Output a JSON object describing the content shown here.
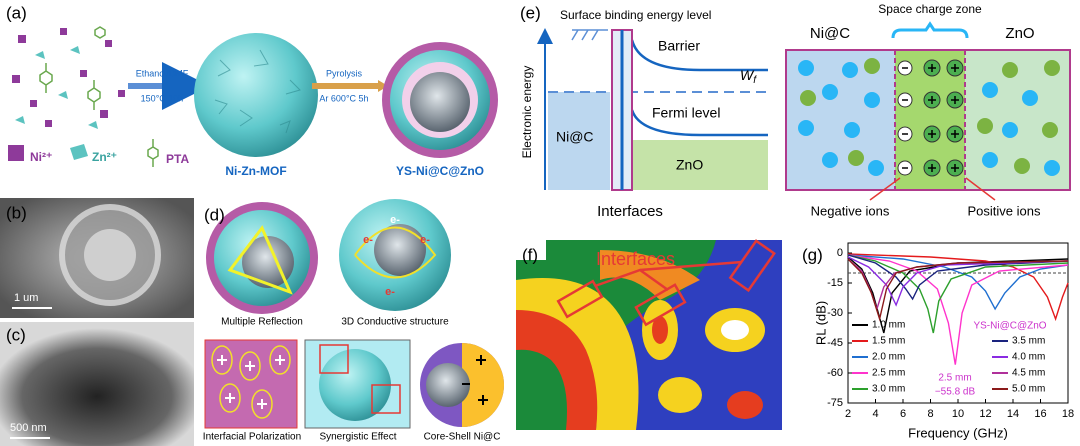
{
  "panel_a": {
    "label": "(a)",
    "step1_top": "Ethanol/DMF",
    "step1_bottom": "150°C 10h",
    "product1": "Ni-Zn-MOF",
    "step2_top": "Pyrolysis",
    "step2_bottom": "Ar 600°C 5h",
    "product2": "YS-Ni@C@ZnO",
    "legend": [
      "Ni²⁺",
      "Zn²⁺",
      "PTA"
    ]
  },
  "panel_b": {
    "label": "(b)",
    "scale_bar": "1 um"
  },
  "panel_c": {
    "label": "(c)",
    "scale_bar": "500 nm"
  },
  "panel_d": {
    "label": "(d)",
    "captions": [
      "Multiple Reflection",
      "3D Conductive structure",
      "Interfacial Polarization",
      "Synergistic Effect",
      "Core-Shell Ni@C"
    ],
    "electrons": [
      "e-",
      "e-",
      "e-",
      "e-"
    ]
  },
  "panel_e": {
    "label": "(e)",
    "y_axis": "Electronic energy",
    "surface_level": "Surface binding energy level",
    "barrier": "Barrier",
    "work_function": {
      "symbol": "W",
      "subscript": "f"
    },
    "fermi_level": "Fermi level",
    "left_material": "Ni@C",
    "right_material": "ZnO",
    "interfaces": "Interfaces",
    "zone_title": "Space charge zone",
    "zone_left": "Ni@C",
    "zone_right": "ZnO",
    "negative_ions": "Negative ions",
    "positive_ions": "Positive ions"
  },
  "panel_f": {
    "label": "(f)",
    "annotation": "Interfaces"
  },
  "chart_data": {
    "type": "line",
    "panel_label": "(g)",
    "xlabel": "Frequency (GHz)",
    "ylabel": "RL (dB)",
    "xlim": [
      2,
      18
    ],
    "ylim": [
      -75,
      5
    ],
    "xticks": [
      2,
      4,
      6,
      8,
      10,
      12,
      14,
      16,
      18
    ],
    "yticks": [
      0,
      -15,
      -30,
      -45,
      -60,
      -75
    ],
    "reference_line": -10,
    "annotations": [
      "YS-Ni@C@ZnO",
      "2.5 mm",
      "−55.8 dB"
    ],
    "series": [
      {
        "name": "1.0 mm",
        "color": "#000000",
        "x": [
          2,
          3,
          3.8,
          4.6,
          5.2,
          6.5,
          10,
          18
        ],
        "values": [
          -2,
          -8,
          -20,
          -40,
          -20,
          -9,
          -5,
          -3
        ]
      },
      {
        "name": "1.5 mm",
        "color": "#e41a1c",
        "x": [
          2,
          8,
          12,
          14,
          15.5,
          16.5,
          17.1,
          17.6,
          18
        ],
        "values": [
          -0.5,
          -2,
          -4,
          -7,
          -12,
          -22,
          -33,
          -22,
          -15
        ]
      },
      {
        "name": "2.0 mm",
        "color": "#1f6fd0",
        "x": [
          2,
          6,
          9,
          11,
          12,
          12.7,
          13.4,
          14.5,
          16,
          18
        ],
        "values": [
          -1,
          -3,
          -7,
          -12,
          -19,
          -28,
          -20,
          -12,
          -8,
          -6
        ]
      },
      {
        "name": "2.5 mm",
        "color": "#ff33cc",
        "x": [
          2,
          5,
          7,
          8.5,
          9.3,
          9.8,
          10.3,
          11,
          13,
          18
        ],
        "values": [
          -1,
          -4,
          -9,
          -18,
          -35,
          -55.8,
          -30,
          -16,
          -9,
          -6
        ]
      },
      {
        "name": "3.0 mm",
        "color": "#2ca02c",
        "x": [
          2,
          4,
          6,
          7.2,
          7.8,
          8.2,
          8.6,
          9.5,
          12,
          18
        ],
        "values": [
          -1,
          -4,
          -10,
          -18,
          -28,
          -40,
          -24,
          -13,
          -7,
          -5
        ]
      },
      {
        "name": "3.5 mm",
        "color": "#1a237e",
        "x": [
          2,
          4,
          5.5,
          6.2,
          6.7,
          7.2,
          8.5,
          12,
          18
        ],
        "values": [
          -1,
          -5,
          -12,
          -18,
          -23,
          -16,
          -9,
          -6,
          -4
        ]
      },
      {
        "name": "4.0 mm",
        "color": "#8a2be2",
        "x": [
          2,
          3.5,
          4.8,
          5.5,
          6,
          7,
          9,
          18
        ],
        "values": [
          -2,
          -7,
          -16,
          -26,
          -17,
          -10,
          -6,
          -4
        ]
      },
      {
        "name": "4.5 mm",
        "color": "#b0309a",
        "x": [
          2,
          3,
          3.6,
          4.1,
          4.6,
          5.4,
          7,
          10,
          18
        ],
        "values": [
          -3,
          -9,
          -18,
          -28,
          -17,
          -10,
          -7,
          -5,
          -4
        ]
      },
      {
        "name": "5.0 mm",
        "color": "#8b1a1a",
        "x": [
          2,
          3,
          3.7,
          4.3,
          4.8,
          5.5,
          7,
          10,
          18
        ],
        "values": [
          -3,
          -10,
          -20,
          -33,
          -18,
          -10,
          -7,
          -5,
          -4
        ]
      }
    ]
  }
}
